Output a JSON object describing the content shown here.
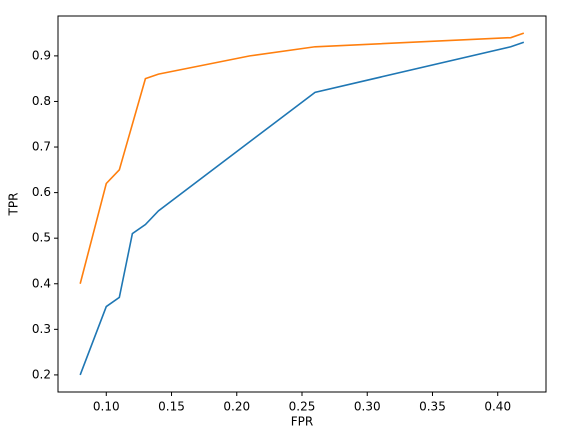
{
  "chart_data": {
    "type": "line",
    "xlabel": "FPR",
    "ylabel": "TPR",
    "series": [
      {
        "color": "#1f77b4",
        "x": [
          0.08,
          0.1,
          0.11,
          0.12,
          0.13,
          0.14,
          0.26,
          0.41,
          0.42
        ],
        "values": [
          0.2,
          0.35,
          0.37,
          0.51,
          0.53,
          0.56,
          0.82,
          0.92,
          0.93
        ]
      },
      {
        "color": "#ff7f0e",
        "x": [
          0.08,
          0.1,
          0.11,
          0.13,
          0.14,
          0.21,
          0.26,
          0.41,
          0.42
        ],
        "values": [
          0.4,
          0.62,
          0.65,
          0.85,
          0.86,
          0.9,
          0.92,
          0.94,
          0.95
        ]
      }
    ],
    "xlim": [
      0.063,
      0.437
    ],
    "ylim": [
      0.1625,
      0.9875
    ],
    "xticks": [
      {
        "value": 0.1,
        "label": "0.10"
      },
      {
        "value": 0.15,
        "label": "0.15"
      },
      {
        "value": 0.2,
        "label": "0.20"
      },
      {
        "value": 0.25,
        "label": "0.25"
      },
      {
        "value": 0.3,
        "label": "0.30"
      },
      {
        "value": 0.35,
        "label": "0.35"
      },
      {
        "value": 0.4,
        "label": "0.40"
      }
    ],
    "yticks": [
      0.2,
      0.3,
      0.4,
      0.5,
      0.6,
      0.7,
      0.8,
      0.9
    ],
    "grid": false
  }
}
